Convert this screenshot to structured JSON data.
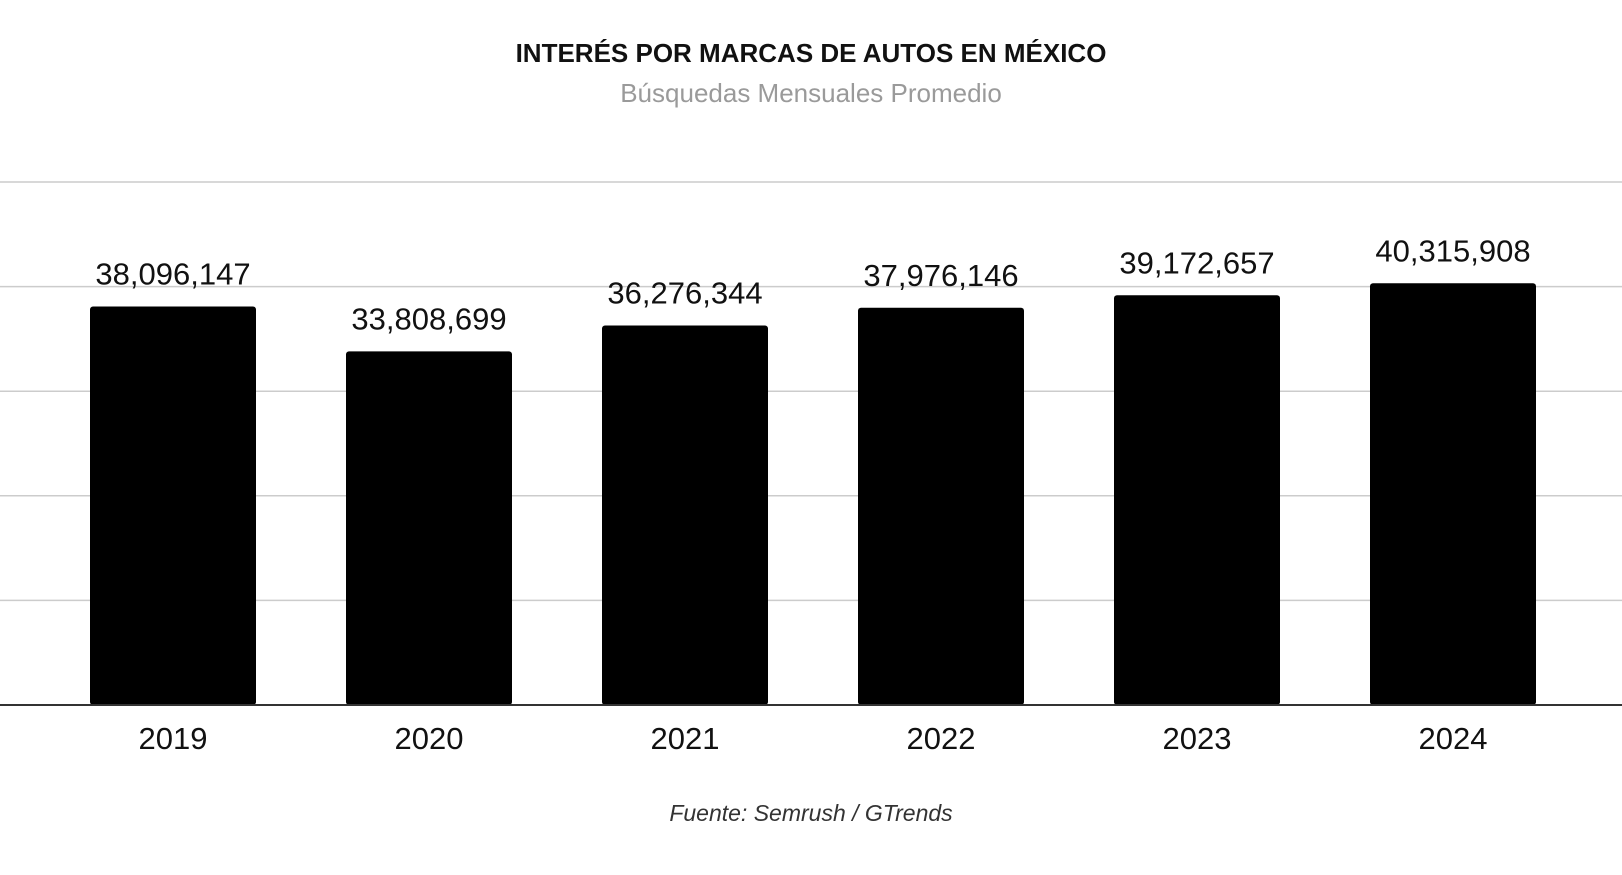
{
  "chart_data": {
    "type": "bar",
    "title": "INTERÉS POR MARCAS DE AUTOS EN MÉXICO",
    "subtitle": "Búsquedas Mensuales Promedio",
    "source": "Fuente: Semrush / GTrends",
    "categories": [
      "2019",
      "2020",
      "2021",
      "2022",
      "2023",
      "2024"
    ],
    "values": [
      38096147,
      33808699,
      36276344,
      37976146,
      39172657,
      40315908
    ],
    "value_labels": [
      "38,096,147",
      "33,808,699",
      "36,276,344",
      "37,976,146",
      "39,172,657",
      "40,315,908"
    ],
    "xlabel": "",
    "ylabel": "",
    "ylim": [
      0,
      50000000
    ],
    "grid": true,
    "bar_color": "#000000",
    "grid_color": "#cccccc"
  }
}
